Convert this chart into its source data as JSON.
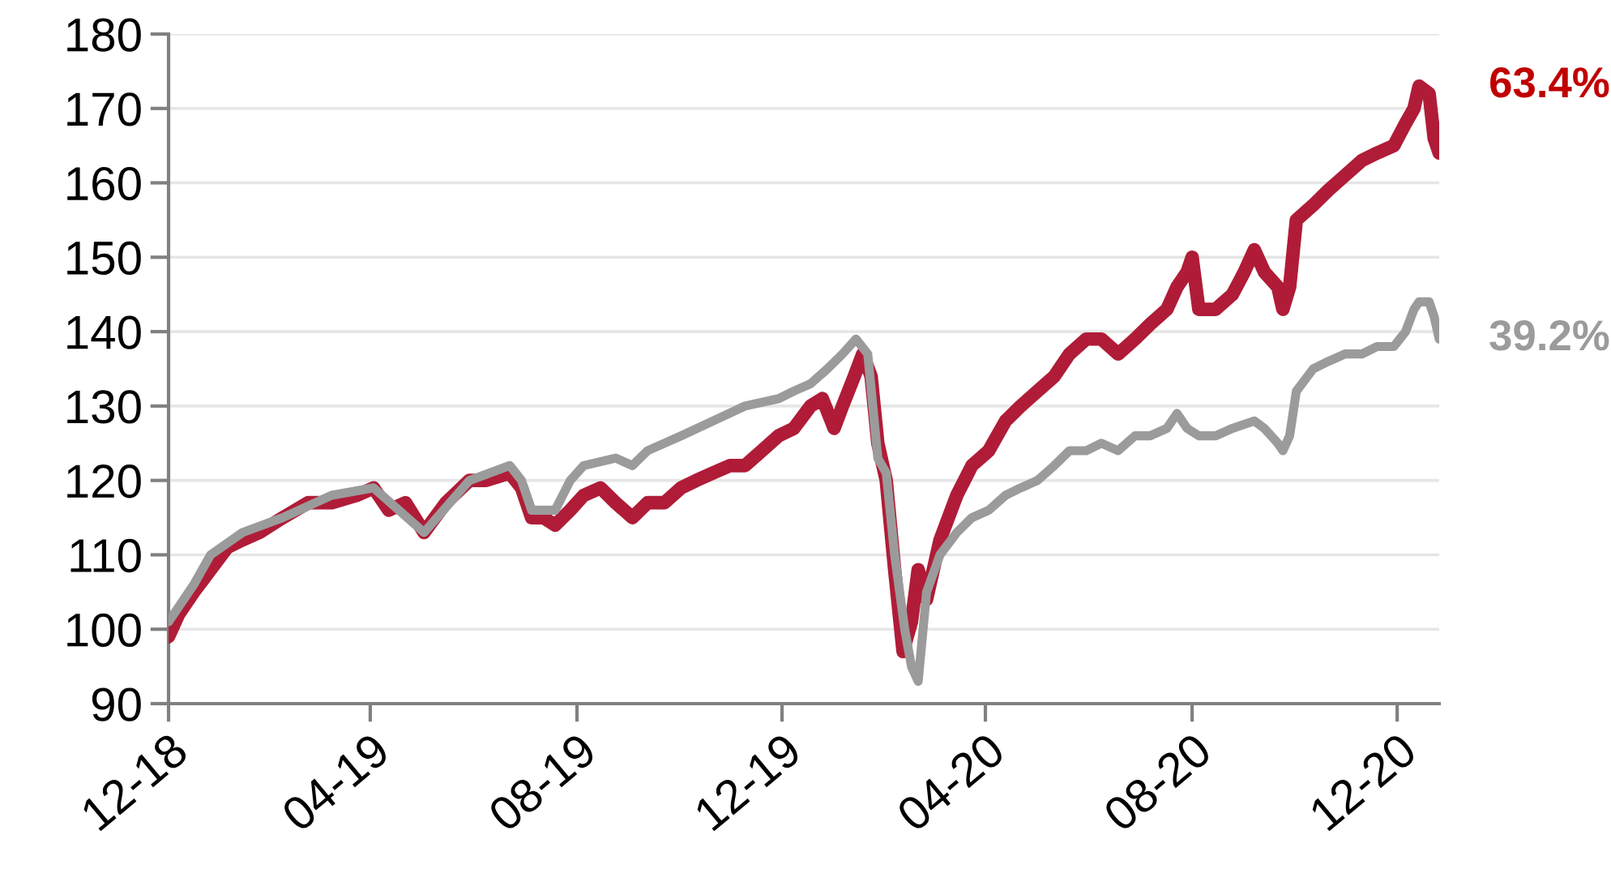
{
  "chart_data": {
    "type": "line",
    "ylim": [
      90,
      180
    ],
    "yticks": [
      90,
      100,
      110,
      120,
      130,
      140,
      150,
      160,
      170,
      180
    ],
    "xlim": [
      "2018-12-31",
      "2021-01-25"
    ],
    "xticks": [
      {
        "value": "2018-12-31",
        "label": "12-18"
      },
      {
        "value": "2019-04-30",
        "label": "04-19"
      },
      {
        "value": "2019-08-31",
        "label": "08-19"
      },
      {
        "value": "2019-12-31",
        "label": "12-19"
      },
      {
        "value": "2020-04-30",
        "label": "04-20"
      },
      {
        "value": "2020-08-31",
        "label": "08-20"
      },
      {
        "value": "2020-12-31",
        "label": "12-20"
      }
    ],
    "grid": "y",
    "legend": false,
    "series": [
      {
        "color": "#b01c37",
        "x": [
          "2018-12-31",
          "2019-01-06",
          "2019-01-15",
          "2019-01-25",
          "2019-02-04",
          "2019-02-13",
          "2019-02-23",
          "2019-03-09",
          "2019-03-24",
          "2019-04-07",
          "2019-04-22",
          "2019-05-02",
          "2019-05-11",
          "2019-05-21",
          "2019-06-01",
          "2019-06-14",
          "2019-06-28",
          "2019-07-08",
          "2019-07-22",
          "2019-07-29",
          "2019-08-04",
          "2019-08-11",
          "2019-08-18",
          "2019-08-27",
          "2019-09-04",
          "2019-09-14",
          "2019-09-23",
          "2019-10-03",
          "2019-10-12",
          "2019-10-22",
          "2019-11-01",
          "2019-11-10",
          "2019-11-20",
          "2019-11-30",
          "2019-12-09",
          "2019-12-19",
          "2019-12-29",
          "2020-01-07",
          "2020-01-17",
          "2020-01-24",
          "2020-01-31",
          "2020-02-05",
          "2020-02-12",
          "2020-02-17",
          "2020-02-22",
          "2020-02-26",
          "2020-03-02",
          "2020-03-07",
          "2020-03-12",
          "2020-03-17",
          "2020-03-21",
          "2020-03-26",
          "2020-04-03",
          "2020-04-13",
          "2020-04-22",
          "2020-05-02",
          "2020-05-12",
          "2020-05-21",
          "2020-05-31",
          "2020-06-10",
          "2020-06-19",
          "2020-06-29",
          "2020-07-08",
          "2020-07-18",
          "2020-07-28",
          "2020-08-06",
          "2020-08-16",
          "2020-08-22",
          "2020-08-28",
          "2020-08-31",
          "2020-09-04",
          "2020-09-14",
          "2020-09-24",
          "2020-10-01",
          "2020-10-07",
          "2020-10-13",
          "2020-10-21",
          "2020-10-24",
          "2020-10-28",
          "2020-11-01",
          "2020-11-11",
          "2020-11-20",
          "2020-11-30",
          "2020-12-10",
          "2020-12-19",
          "2020-12-29",
          "2021-01-05",
          "2021-01-10",
          "2021-01-13",
          "2021-01-19",
          "2021-01-22",
          "2021-01-25"
        ],
        "values": [
          99,
          102,
          105,
          108,
          111,
          112,
          113,
          115,
          117,
          117,
          118,
          119,
          116,
          117,
          113,
          117,
          120,
          120,
          121,
          119,
          115,
          115,
          114,
          116,
          118,
          119,
          117,
          115,
          117,
          117,
          119,
          120,
          121,
          122,
          122,
          124,
          126,
          127,
          130,
          131,
          127,
          130,
          134,
          137,
          134,
          125,
          120,
          108,
          97,
          101,
          108,
          104,
          112,
          118,
          122,
          124,
          128,
          130,
          132,
          134,
          137,
          139,
          139,
          137,
          139,
          141,
          143,
          146,
          148,
          150,
          143,
          143,
          145,
          148,
          151,
          148,
          146,
          143,
          146,
          155,
          157,
          159,
          161,
          163,
          164,
          165,
          168,
          170,
          173,
          172,
          166,
          164
        ]
      },
      {
        "color": "#9b9b9b",
        "x": [
          "2018-12-31",
          "2019-01-15",
          "2019-01-25",
          "2019-02-13",
          "2019-03-09",
          "2019-04-07",
          "2019-05-02",
          "2019-06-01",
          "2019-06-28",
          "2019-07-22",
          "2019-07-29",
          "2019-08-04",
          "2019-08-18",
          "2019-08-27",
          "2019-09-04",
          "2019-09-23",
          "2019-10-03",
          "2019-10-12",
          "2019-11-01",
          "2019-11-20",
          "2019-12-09",
          "2019-12-29",
          "2020-01-07",
          "2020-01-17",
          "2020-01-27",
          "2020-02-05",
          "2020-02-13",
          "2020-02-20",
          "2020-02-26",
          "2020-03-02",
          "2020-03-07",
          "2020-03-13",
          "2020-03-17",
          "2020-03-21",
          "2020-03-26",
          "2020-04-03",
          "2020-04-13",
          "2020-04-22",
          "2020-05-02",
          "2020-05-12",
          "2020-05-21",
          "2020-05-31",
          "2020-06-10",
          "2020-06-19",
          "2020-06-29",
          "2020-07-08",
          "2020-07-18",
          "2020-07-28",
          "2020-08-06",
          "2020-08-16",
          "2020-08-22",
          "2020-08-28",
          "2020-09-04",
          "2020-09-14",
          "2020-09-24",
          "2020-10-07",
          "2020-10-13",
          "2020-10-21",
          "2020-10-24",
          "2020-10-28",
          "2020-11-01",
          "2020-11-11",
          "2020-11-20",
          "2020-11-30",
          "2020-12-10",
          "2020-12-19",
          "2020-12-29",
          "2021-01-05",
          "2021-01-10",
          "2021-01-13",
          "2021-01-19",
          "2021-01-22",
          "2021-01-25"
        ],
        "values": [
          101,
          106,
          110,
          113,
          115,
          118,
          119,
          113,
          120,
          122,
          120,
          116,
          116,
          120,
          122,
          123,
          122,
          124,
          126,
          128,
          130,
          131,
          132,
          133,
          135,
          137,
          139,
          137,
          123,
          121,
          110,
          100,
          95,
          93,
          105,
          110,
          113,
          115,
          116,
          118,
          119,
          120,
          122,
          124,
          124,
          125,
          124,
          126,
          126,
          127,
          129,
          127,
          126,
          126,
          127,
          128,
          127,
          125,
          124,
          126,
          132,
          135,
          136,
          137,
          137,
          138,
          138,
          140,
          143,
          144,
          144,
          142,
          139
        ]
      }
    ],
    "annotations": [
      {
        "text": "63.4%",
        "x": "2021-01-25",
        "y": 173
      },
      {
        "text": "39.2%",
        "x": "2021-01-25",
        "y": 139
      }
    ]
  }
}
